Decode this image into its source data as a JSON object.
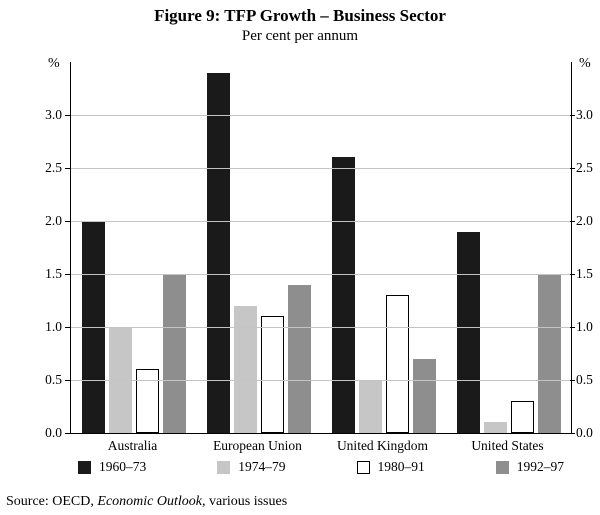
{
  "figure": {
    "source_prefix": "Source: OECD, ",
    "source_italic": "Economic Outlook,",
    "source_suffix": " various issues"
  },
  "chart_data": {
    "type": "bar",
    "title": "Figure 9: TFP Growth – Business Sector",
    "subtitle": "Per cent per annum",
    "y_unit": "%",
    "categories": [
      "Australia",
      "European Union",
      "United Kingdom",
      "United States"
    ],
    "series": [
      {
        "name": "1960–73",
        "color": "#1a1a1a",
        "values": [
          2.0,
          3.4,
          2.6,
          1.9
        ]
      },
      {
        "name": "1974–79",
        "color": "#c6c6c6",
        "values": [
          1.0,
          1.2,
          0.5,
          0.1
        ]
      },
      {
        "name": "1980–91",
        "color": "#ffffff",
        "border": "#000000",
        "values": [
          0.6,
          1.1,
          1.3,
          0.3
        ]
      },
      {
        "name": "1992–97",
        "color": "#8e8e8e",
        "values": [
          1.5,
          1.4,
          0.7,
          1.5
        ]
      }
    ],
    "ylim": [
      0,
      3.5
    ],
    "yticks": [
      0.0,
      0.5,
      1.0,
      1.5,
      2.0,
      2.5,
      3.0
    ],
    "grid": true,
    "legend_position": "bottom"
  }
}
